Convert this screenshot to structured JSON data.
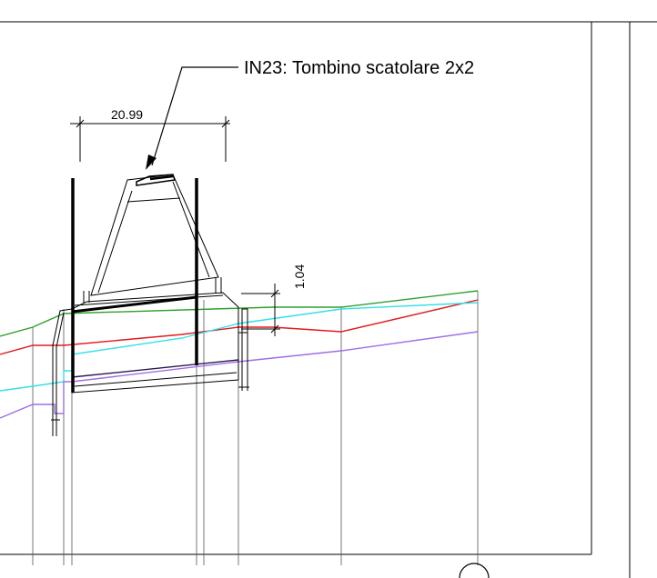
{
  "drawing": {
    "callout_label": "IN23: Tombino scatolare 2x2",
    "dimension_width": "20.99",
    "dimension_height": "1.04"
  },
  "colors": {
    "frame": "#000000",
    "green_profile": "#2ca02c",
    "red_profile": "#e31a1c",
    "cyan_profile": "#33e0e6",
    "purple_profile": "#a06ee6",
    "dark_profile": "#2b1a4a"
  }
}
